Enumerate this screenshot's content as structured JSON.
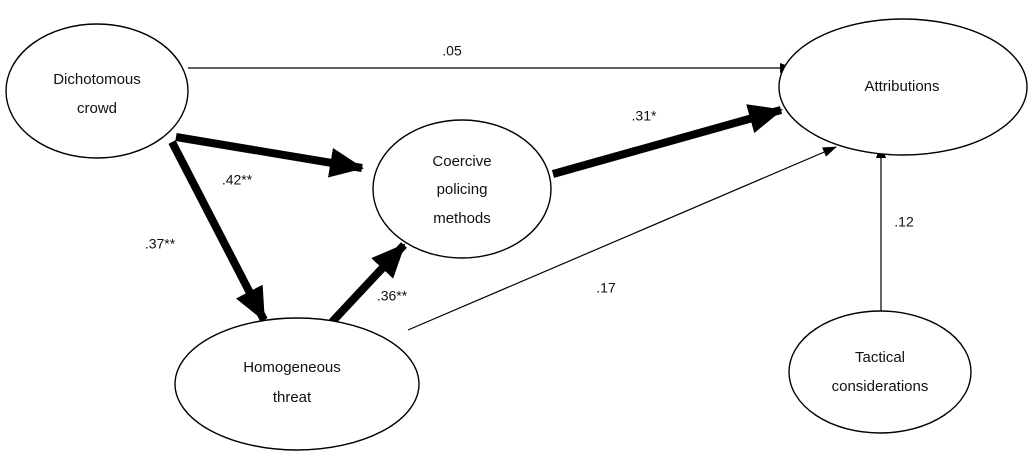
{
  "nodes": {
    "dichotomous_crowd": {
      "line1": "Dichotomous",
      "line2": "crowd"
    },
    "attributions": {
      "line1": "Attributions"
    },
    "coercive_policing": {
      "line1": "Coercive",
      "line2": "policing",
      "line3": "methods"
    },
    "homogeneous_threat": {
      "line1": "Homogeneous",
      "line2": "threat"
    },
    "tactical_considerations": {
      "line1": "Tactical",
      "line2": "considerations"
    }
  },
  "edges": {
    "crowd_to_attributions": {
      "label": ".05"
    },
    "crowd_to_coercive": {
      "label": ".42**"
    },
    "crowd_to_threat": {
      "label": ".37**"
    },
    "coercive_to_attributions": {
      "label": ".31*"
    },
    "threat_to_coercive": {
      "label": ".36**"
    },
    "threat_to_attributions": {
      "label": ".17"
    },
    "tactical_to_attributions": {
      "label": ".12"
    }
  }
}
